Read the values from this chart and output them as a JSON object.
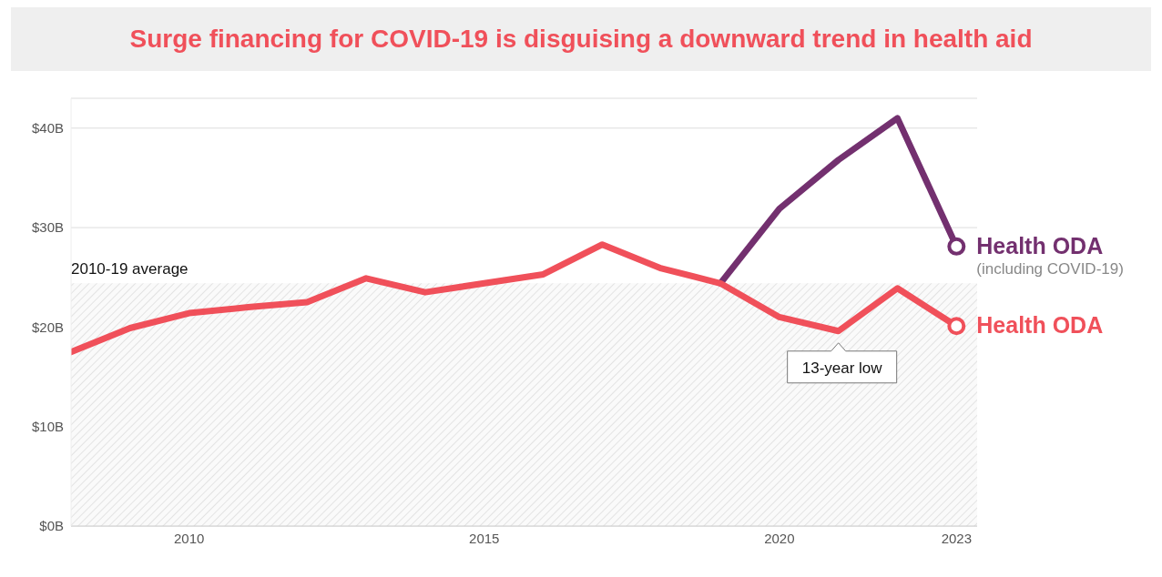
{
  "chart_data": {
    "type": "line",
    "title": "Surge financing for COVID-19 is disguising a downward trend in health aid",
    "series": [
      {
        "name": "Health ODA",
        "color": "#73306f",
        "x": [
          2019,
          2020,
          2021,
          2022,
          2023
        ],
        "values": [
          24.4,
          31.9,
          36.8,
          41.0,
          28.1
        ]
      },
      {
        "name": "Health ODA",
        "color": "#f0505a",
        "x": [
          2008,
          2009,
          2010,
          2011,
          2012,
          2013,
          2014,
          2015,
          2016,
          2017,
          2018,
          2019,
          2020,
          2021,
          2022,
          2023
        ],
        "values": [
          17.5,
          19.9,
          21.4,
          22.0,
          22.5,
          24.9,
          23.5,
          24.4,
          25.3,
          28.3,
          25.9,
          24.4,
          21.0,
          19.6,
          23.9,
          20.1
        ]
      }
    ],
    "xlim": [
      2008,
      2023.35
    ],
    "xticks": [
      2010,
      2015,
      2020,
      2023
    ],
    "ylim": [
      0,
      43
    ],
    "yticks": [
      {
        "value": 0,
        "label": "$0B"
      },
      {
        "value": 10,
        "label": "$10B"
      },
      {
        "value": 20,
        "label": "$20B"
      },
      {
        "value": 30,
        "label": "$30B"
      },
      {
        "value": 40,
        "label": "$40B"
      }
    ],
    "grid": "y",
    "bands": [
      {
        "axis": "y",
        "from": 0,
        "to": 24.4,
        "label": "2010-19 average",
        "color": "#dcdcdc"
      }
    ],
    "annotations": [
      "(including COVID-19)",
      {
        "text": "13-year low",
        "x": 2021,
        "y": 19.6
      }
    ]
  }
}
